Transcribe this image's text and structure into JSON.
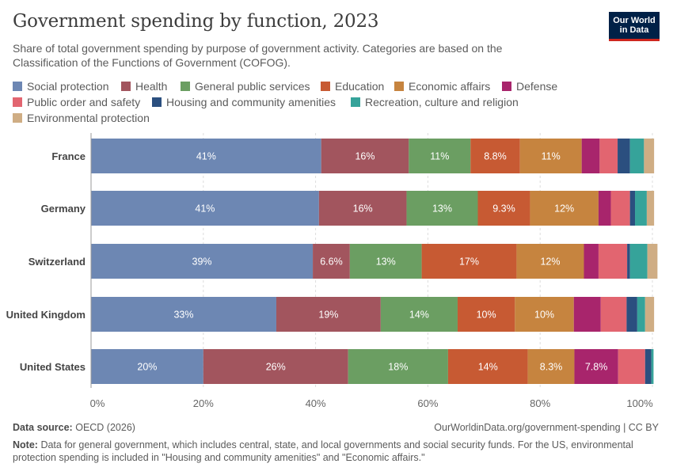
{
  "header": {
    "title": "Government spending by function, 2023",
    "subtitle": "Share of total government spending by purpose of government activity. Categories are based on the Classification of the Functions of Government (COFOG).",
    "logo_line1": "Our World",
    "logo_line2": "in Data"
  },
  "footer": {
    "source_label": "Data source:",
    "source_text": "OECD (2026)",
    "url": "OurWorldinData.org/government-spending | CC BY",
    "note_label": "Note:",
    "note_text": "Data for general government, which includes central, state, and local governments and social security funds. For the US, environmental protection spending is included in \"Housing and community amenities\" and \"Economic affairs.\""
  },
  "colors": {
    "Social protection": "#6d87b3",
    "Health": "#a2555e",
    "General public services": "#6b9e62",
    "Education": "#c75a33",
    "Economic affairs": "#c6843f",
    "Defense": "#a8256c",
    "Public order and safety": "#e26570",
    "Housing and community amenities": "#2b4f7f",
    "Recreation, culture and religion": "#36a39a",
    "Environmental protection": "#cfad84"
  },
  "chart_data": {
    "type": "bar",
    "orientation": "horizontal",
    "stacked": true,
    "categories": [
      "France",
      "Germany",
      "Switzerland",
      "United Kingdom",
      "United States"
    ],
    "series": [
      {
        "name": "Social protection",
        "values": [
          41,
          40.6,
          39.5,
          33,
          20
        ],
        "labels": [
          "41%",
          "41%",
          "39%",
          "33%",
          "20%"
        ]
      },
      {
        "name": "Health",
        "values": [
          15.6,
          15.6,
          6.6,
          18.6,
          25.8
        ],
        "labels": [
          "16%",
          "16%",
          "6.6%",
          "19%",
          "26%"
        ]
      },
      {
        "name": "General public services",
        "values": [
          11,
          12.7,
          12.8,
          13.7,
          17.8
        ],
        "labels": [
          "11%",
          "13%",
          "13%",
          "14%",
          "18%"
        ]
      },
      {
        "name": "Education",
        "values": [
          8.8,
          9.3,
          16.9,
          10.2,
          14.2
        ],
        "labels": [
          "8.8%",
          "9.3%",
          "17%",
          "10%",
          "14%"
        ]
      },
      {
        "name": "Economic affairs",
        "values": [
          11,
          12.2,
          12,
          10.5,
          8.3
        ],
        "labels": [
          "11%",
          "12%",
          "12%",
          "10%",
          "8.3%"
        ]
      },
      {
        "name": "Defense",
        "values": [
          3.2,
          2.2,
          2.6,
          4.8,
          7.8
        ],
        "labels": [
          "",
          "",
          "",
          "",
          "7.8%"
        ]
      },
      {
        "name": "Public order and safety",
        "values": [
          3.2,
          3.4,
          5.1,
          4.6,
          4.8
        ],
        "labels": [
          "",
          "",
          "",
          "",
          ""
        ]
      },
      {
        "name": "Housing and community amenities",
        "values": [
          2.2,
          0.9,
          0.5,
          1.9,
          1.1
        ],
        "labels": [
          "",
          "",
          "",
          "",
          ""
        ]
      },
      {
        "name": "Recreation, culture and religion",
        "values": [
          2.5,
          2.1,
          3.1,
          1.4,
          0.4
        ],
        "labels": [
          "",
          "",
          "",
          "",
          ""
        ]
      },
      {
        "name": "Environmental protection",
        "values": [
          1.8,
          1.3,
          1.8,
          1.6,
          0
        ],
        "labels": [
          "",
          "",
          "",
          "",
          ""
        ]
      }
    ],
    "xlim": [
      0,
      100
    ],
    "x_ticks": [
      "0%",
      "20%",
      "40%",
      "60%",
      "80%",
      "100%"
    ],
    "legend_position": "top",
    "grid": true
  }
}
